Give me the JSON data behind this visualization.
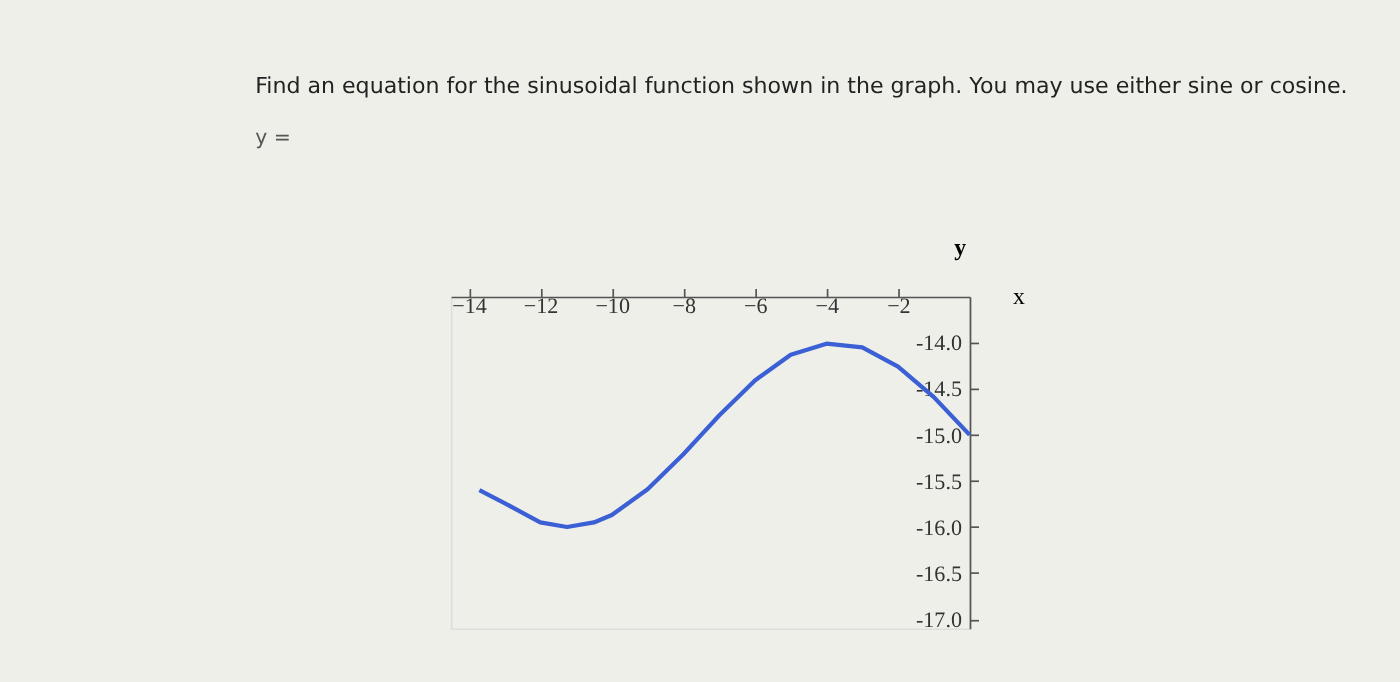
{
  "chart_data": {
    "type": "line",
    "title": "Find an equation for the sinusoidal function shown in the graph. You may use either sine or cosine.",
    "annotations": [
      "y ="
    ],
    "xlabel": "x",
    "ylabel": "y",
    "x": [
      -13.7,
      -13,
      -12,
      -11.25,
      -10.5,
      -10,
      -9,
      -8,
      -7.5,
      -7,
      -6,
      -5,
      -4,
      -3,
      -2,
      -1,
      0
    ],
    "series": [
      {
        "color": "#3b5fd4",
        "values": [
          -15.6,
          -15.74,
          -15.95,
          -16.0,
          -15.95,
          -15.87,
          -15.59,
          -15.21,
          -15.0,
          -14.79,
          -14.41,
          -14.13,
          -14.01,
          -14.05,
          -14.26,
          -14.59,
          -15.0
        ]
      }
    ],
    "xlim": [
      -14.5,
      0
    ],
    "ylim": [
      -17.1,
      -13.5
    ],
    "xticks": [
      -14,
      -12,
      -10,
      -8,
      -6,
      -4,
      -2
    ],
    "yticks": [
      {
        "value": -14,
        "label": "-14.0"
      },
      {
        "value": -14.5,
        "label": "-14.5"
      },
      {
        "value": -15,
        "label": "-15.0"
      },
      {
        "value": -15.5,
        "label": "-15.5"
      },
      {
        "value": -16,
        "label": "-16.0"
      },
      {
        "value": -16.5,
        "label": "-16.5"
      },
      {
        "value": -17,
        "label": "-17.0"
      }
    ],
    "grid": false,
    "legend": false,
    "marker": "none",
    "line_style": "solid"
  }
}
